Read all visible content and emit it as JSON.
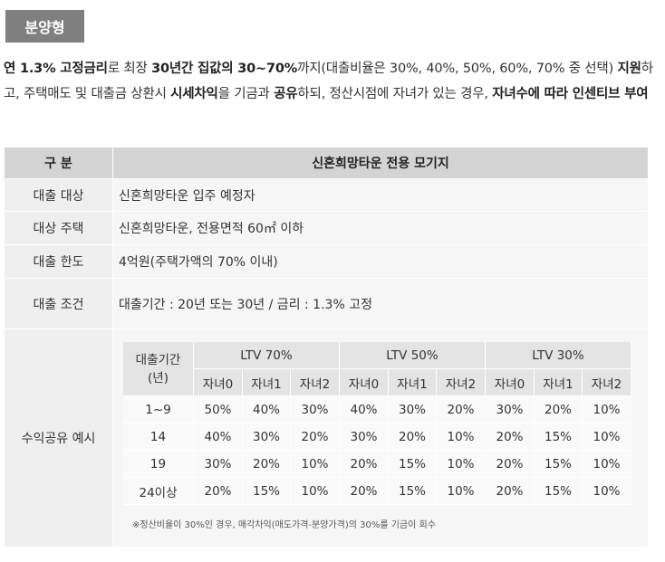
{
  "badge": "분양형",
  "intro": {
    "t1": "연 1.3% 고정금리",
    "t2": "로 최장 ",
    "t3": "30년간 집값의 30~70%",
    "t4": "까지(대출비율은 30%, 40%, 50%, 60%, 70% 중 선택) ",
    "t5": "지원",
    "t6": "하고, 주택매도 및 대출금 상환시 ",
    "t7": "시세차익",
    "t8": "을 기금과 ",
    "t9": "공유",
    "t10": "하되, 정산시점에 자녀가 있는 경우, ",
    "t11": "자녀수에 따라 인센티브 부여"
  },
  "table": {
    "head_left": "구 분",
    "head_right": "신혼희망타운 전용 모기지",
    "rows": [
      {
        "label": "대출 대상",
        "value": "신혼희망타운 입주 예정자"
      },
      {
        "label": "대상 주택",
        "value": "신혼희망타운, 전용면적 60㎡ 이하"
      },
      {
        "label": "대출 한도",
        "value": "4억원(주택가액의 70% 이내)"
      },
      {
        "label": "대출 조건",
        "value": "대출기간 : 20년 또는 30년 / 금리 : 1.3% 고정"
      }
    ],
    "share_label": "수익공유 예시"
  },
  "share": {
    "period_header": "대출기간\n(년)",
    "groups": [
      "LTV 70%",
      "LTV 50%",
      "LTV 30%"
    ],
    "sub": [
      "자녀0",
      "자녀1",
      "자녀2"
    ],
    "rows": [
      {
        "period": "1~9",
        "values": [
          "50%",
          "40%",
          "30%",
          "40%",
          "30%",
          "20%",
          "30%",
          "20%",
          "10%"
        ]
      },
      {
        "period": "14",
        "values": [
          "40%",
          "30%",
          "20%",
          "30%",
          "20%",
          "10%",
          "20%",
          "15%",
          "10%"
        ]
      },
      {
        "period": "19",
        "values": [
          "30%",
          "20%",
          "10%",
          "20%",
          "15%",
          "10%",
          "20%",
          "15%",
          "10%"
        ]
      },
      {
        "period": "24이상",
        "values": [
          "20%",
          "15%",
          "10%",
          "20%",
          "15%",
          "10%",
          "20%",
          "15%",
          "10%"
        ]
      }
    ],
    "note": "※정산비율이 30%인 경우, 매각차익(매도가격-분양가격)의 30%를 기금이 회수"
  }
}
